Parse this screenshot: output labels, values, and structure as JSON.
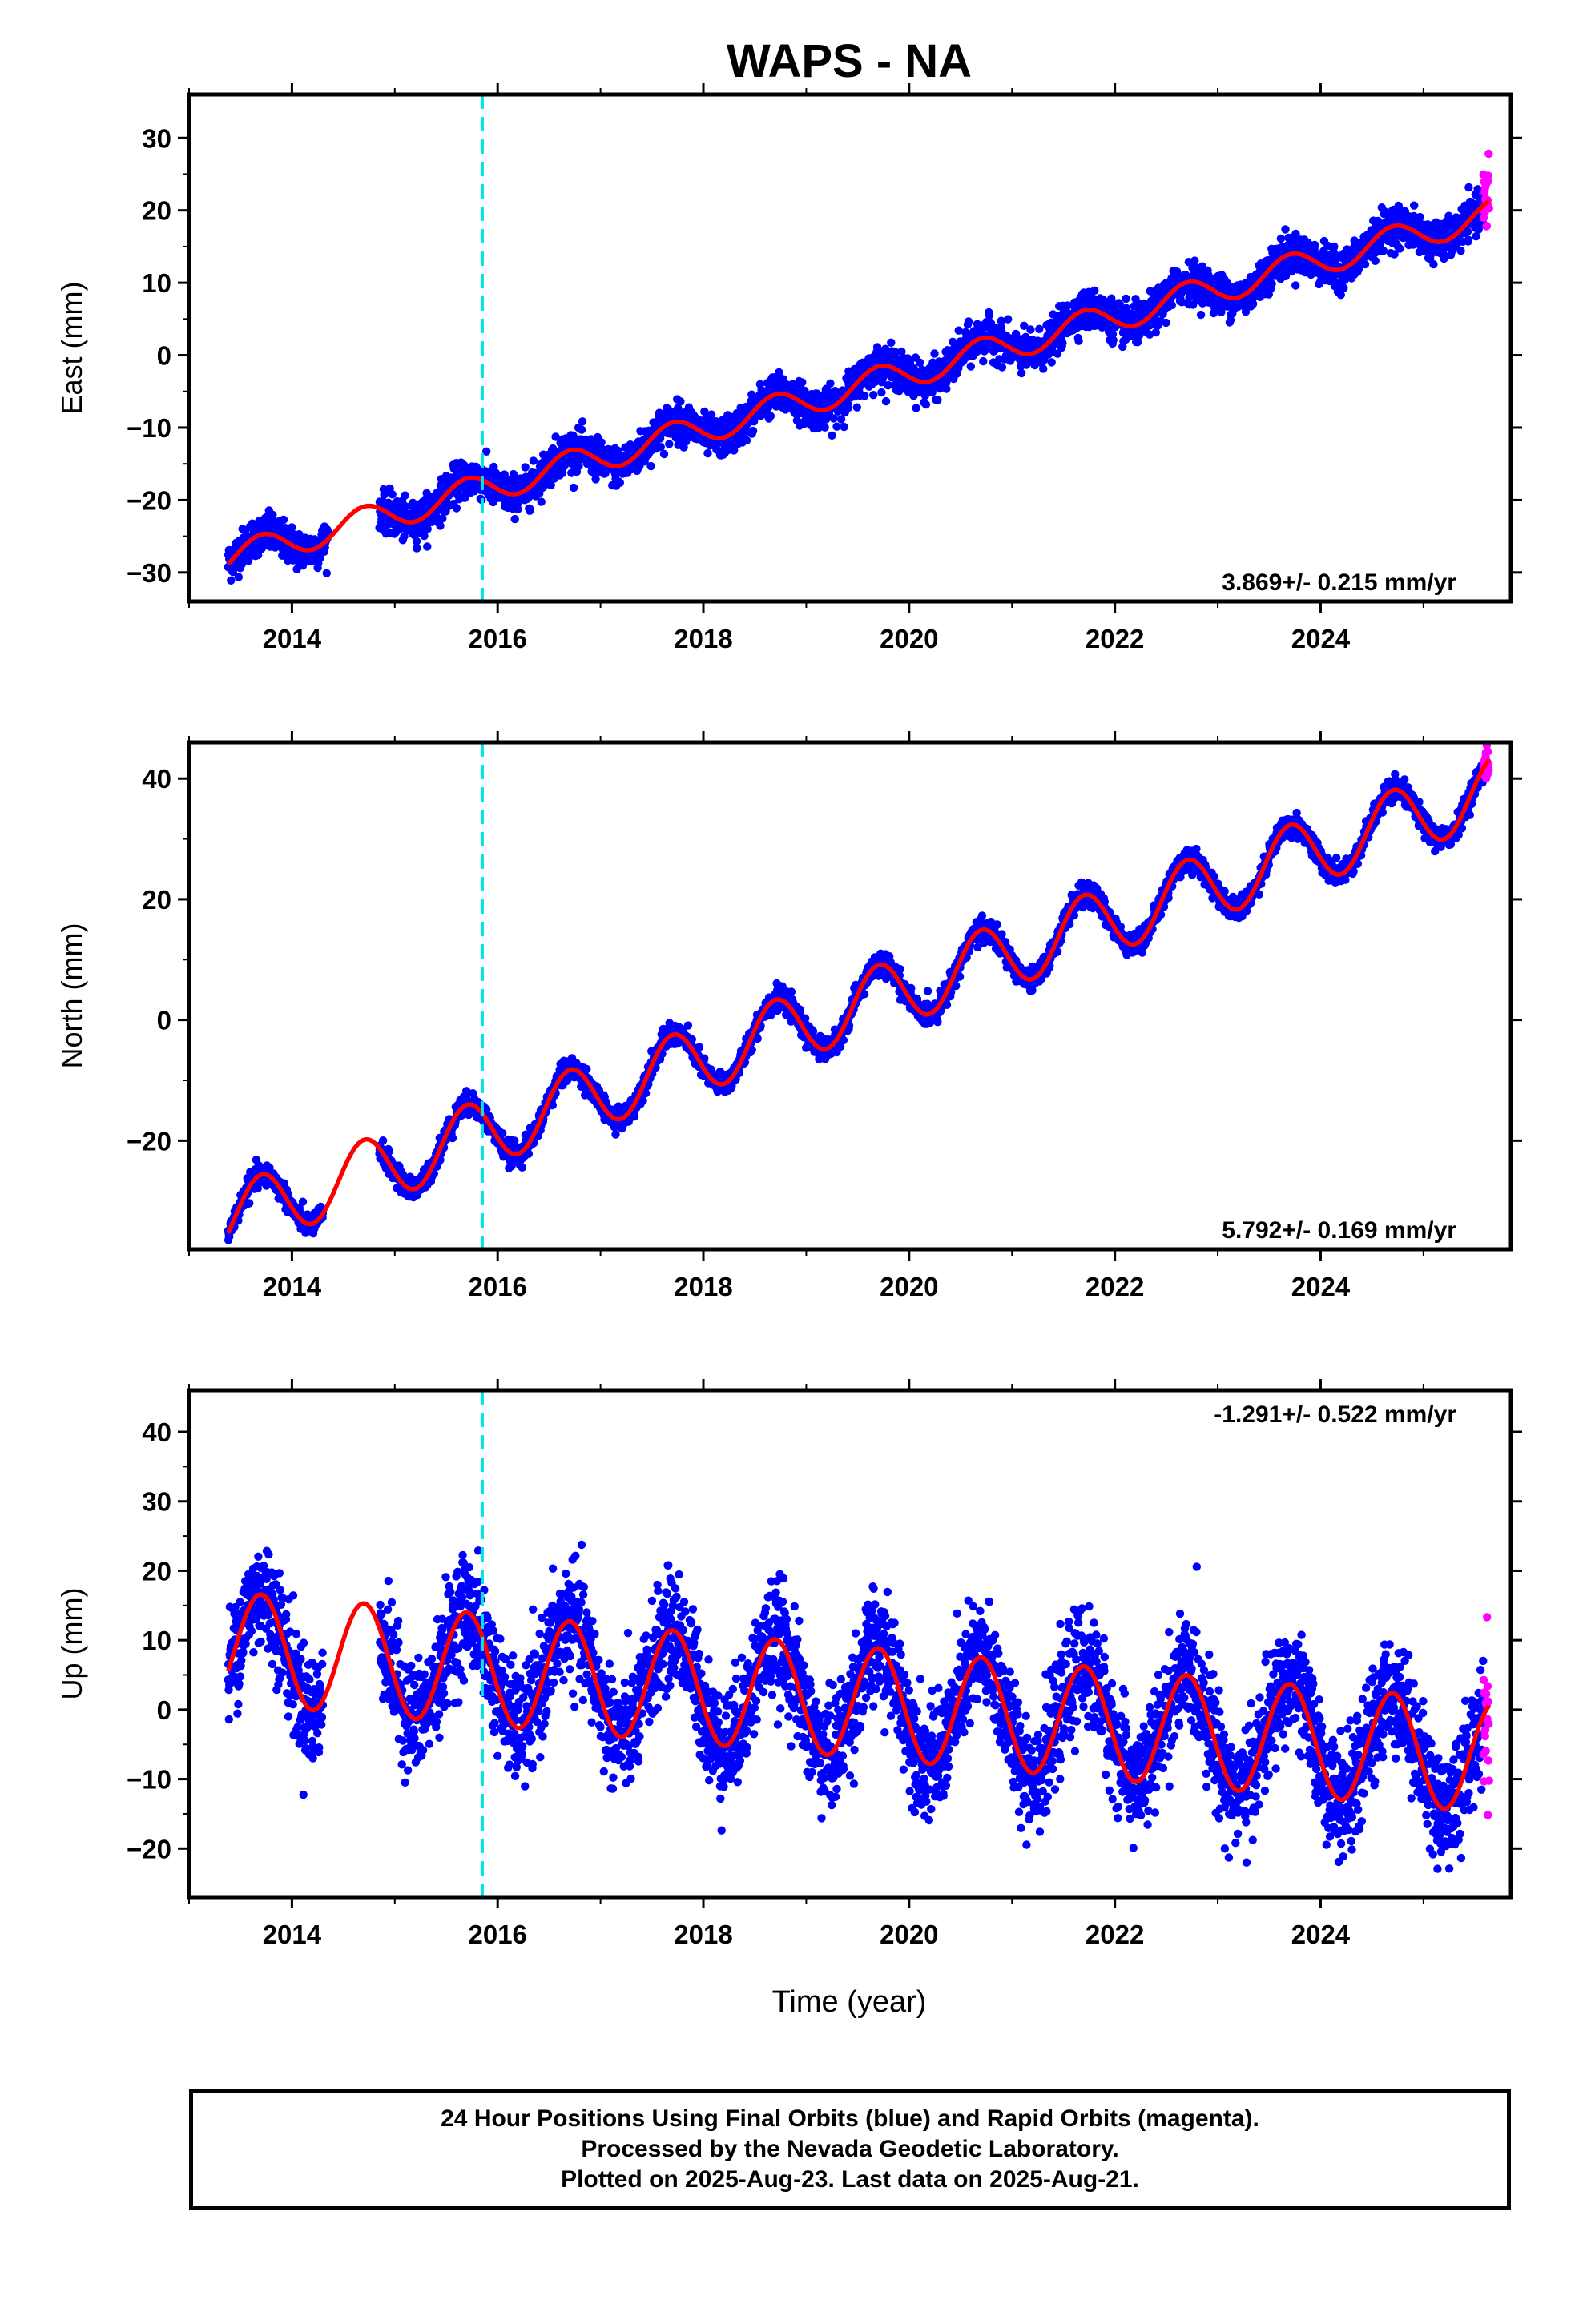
{
  "title": "WAPS - NA",
  "xlabel": "Time (year)",
  "footer": {
    "line1": "24 Hour Positions Using Final Orbits (blue) and Rapid Orbits (magenta).",
    "line2": "Processed by the Nevada Geodetic Laboratory.",
    "line3": "Plotted on 2025-Aug-23. Last data on 2025-Aug-21."
  },
  "colors": {
    "final": "#0000ff",
    "rapid": "#ff00ff",
    "model": "#ff0000",
    "break_line": "#00e5e5"
  },
  "chart_data": [
    {
      "type": "scatter",
      "component": "east",
      "ylabel": "East (mm)",
      "rate": "3.869+/- 0.215 mm/yr",
      "rate_position": "bottom-right",
      "xlim": [
        2013.0,
        2025.85
      ],
      "ylim": [
        -34,
        36
      ],
      "xticks": [
        2014,
        2016,
        2018,
        2020,
        2022,
        2024
      ],
      "xticklabels": [
        "2014",
        "2016",
        "2018",
        "2020",
        "2022",
        "2024"
      ],
      "yticks": [
        -30,
        -20,
        -10,
        0,
        10,
        20,
        30
      ],
      "yticklabels": [
        "−30",
        "−20",
        "−10",
        "0",
        "10",
        "20",
        "30"
      ],
      "equipment_change": 2015.85,
      "data_start": 2013.38,
      "data_end": 2025.64,
      "gaps": [
        [
          2014.35,
          2014.85
        ]
      ],
      "rapid_start": 2025.58,
      "model": {
        "offset": -28.0,
        "rate": 3.869,
        "seasonal_amp": 2.0,
        "seasonal_phase": 0.0,
        "noise": 1.3
      }
    },
    {
      "type": "scatter",
      "component": "north",
      "ylabel": "North (mm)",
      "rate": "5.792+/- 0.169 mm/yr",
      "rate_position": "bottom-right",
      "xlim": [
        2013.0,
        2025.85
      ],
      "ylim": [
        -38,
        46
      ],
      "xticks": [
        2014,
        2016,
        2018,
        2020,
        2022,
        2024
      ],
      "xticklabels": [
        "2014",
        "2016",
        "2018",
        "2020",
        "2022",
        "2024"
      ],
      "yticks": [
        -20,
        0,
        20,
        40
      ],
      "yticklabels": [
        "−20",
        "0",
        "20",
        "40"
      ],
      "equipment_change": 2015.85,
      "data_start": 2013.38,
      "data_end": 2025.64,
      "gaps": [
        [
          2014.3,
          2014.85
        ]
      ],
      "rapid_start": 2025.58,
      "model": {
        "offset": -33.0,
        "rate": 5.792,
        "seasonal_amp": 5.5,
        "seasonal_phase": 0.0,
        "noise": 0.9
      }
    },
    {
      "type": "scatter",
      "component": "up",
      "ylabel": "Up (mm)",
      "rate": "-1.291+/- 0.522 mm/yr",
      "rate_position": "top-right",
      "xlim": [
        2013.0,
        2025.85
      ],
      "ylim": [
        -27,
        46
      ],
      "xticks": [
        2014,
        2016,
        2018,
        2020,
        2022,
        2024
      ],
      "xticklabels": [
        "2014",
        "2016",
        "2018",
        "2020",
        "2022",
        "2024"
      ],
      "yticks": [
        -20,
        -10,
        0,
        10,
        20,
        30,
        40
      ],
      "yticklabels": [
        "−20",
        "−10",
        "0",
        "10",
        "20",
        "30",
        "40"
      ],
      "equipment_change": 2015.85,
      "data_start": 2013.38,
      "data_end": 2025.64,
      "gaps": [
        [
          2014.3,
          2014.85
        ]
      ],
      "rapid_start": 2025.58,
      "model": {
        "offset": 9.0,
        "rate": -1.291,
        "seasonal_amp": 8.0,
        "seasonal_phase": 0.0,
        "noise": 4.0
      }
    }
  ]
}
